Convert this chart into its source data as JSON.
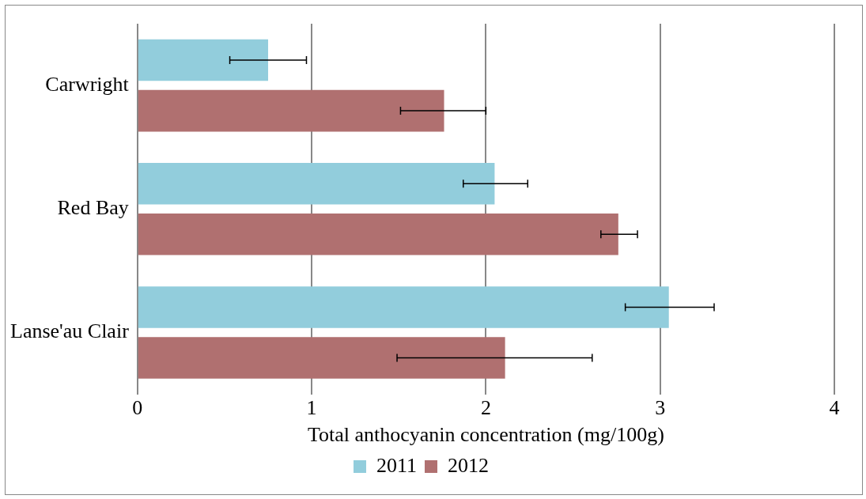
{
  "chart_data": {
    "type": "bar",
    "orientation": "horizontal",
    "xlabel": "Total anthocyanin concentration (mg/100g)",
    "categories": [
      "Carwright",
      "Red Bay",
      "Lanse'au Clair"
    ],
    "series": [
      {
        "name": "2011",
        "color": "#92cddc",
        "values": [
          0.75,
          2.05,
          3.05
        ],
        "errors": [
          [
            0.53,
            0.97
          ],
          [
            1.87,
            2.24
          ],
          [
            2.8,
            3.31
          ]
        ]
      },
      {
        "name": "2012",
        "color": "#b07070",
        "values": [
          1.76,
          2.76,
          2.11
        ],
        "errors": [
          [
            1.51,
            2.0
          ],
          [
            2.66,
            2.87
          ],
          [
            1.49,
            2.61
          ]
        ]
      }
    ],
    "xlim": [
      0,
      4
    ],
    "xticks": [
      0,
      1,
      2,
      3,
      4
    ],
    "grid": "x",
    "legend": "bottom"
  }
}
